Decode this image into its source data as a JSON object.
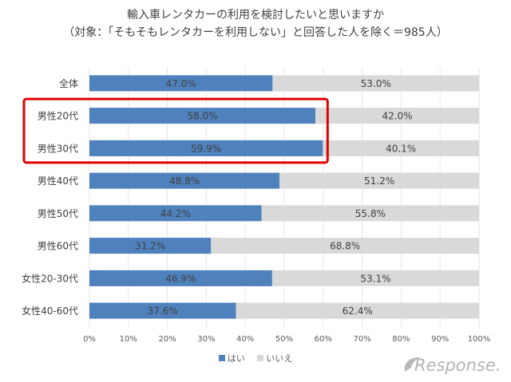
{
  "chart_data": {
    "type": "bar",
    "orientation": "horizontal",
    "stacked": true,
    "title": "輸入車レンタカーの利用を検討したいと思いますか",
    "subtitle": "（対象：「そもそもレンタカーを利用しない」と回答した人を除く＝985人）",
    "categories": [
      "全体",
      "男性20代",
      "男性30代",
      "男性40代",
      "男性50代",
      "男性60代",
      "女性20-30代",
      "女性40-60代"
    ],
    "series": [
      {
        "name": "はい",
        "color": "#4f81bd",
        "values": [
          47.0,
          58.0,
          59.9,
          48.8,
          44.2,
          31.2,
          46.9,
          37.6
        ],
        "labels": [
          "47.0%",
          "58.0%",
          "59.9%",
          "48.8%",
          "44.2%",
          "31.2%",
          "46.9%",
          "37.6%"
        ]
      },
      {
        "name": "いいえ",
        "color": "#d9d9d9",
        "values": [
          53.0,
          42.0,
          40.1,
          51.2,
          55.8,
          68.8,
          53.1,
          62.4
        ],
        "labels": [
          "53.0%",
          "42.0%",
          "40.1%",
          "51.2%",
          "55.8%",
          "68.8%",
          "53.1%",
          "62.4%"
        ]
      }
    ],
    "xlim": [
      0,
      100
    ],
    "x_ticks": [
      "0%",
      "10%",
      "20%",
      "30%",
      "40%",
      "50%",
      "60%",
      "70%",
      "80%",
      "90%",
      "100%"
    ],
    "grid": true,
    "legend_position": "bottom",
    "highlight": {
      "categories": [
        "男性20代",
        "男性30代"
      ],
      "color": "#e00000"
    }
  },
  "watermark": {
    "text": "Response.",
    "icon": "response-logo"
  }
}
